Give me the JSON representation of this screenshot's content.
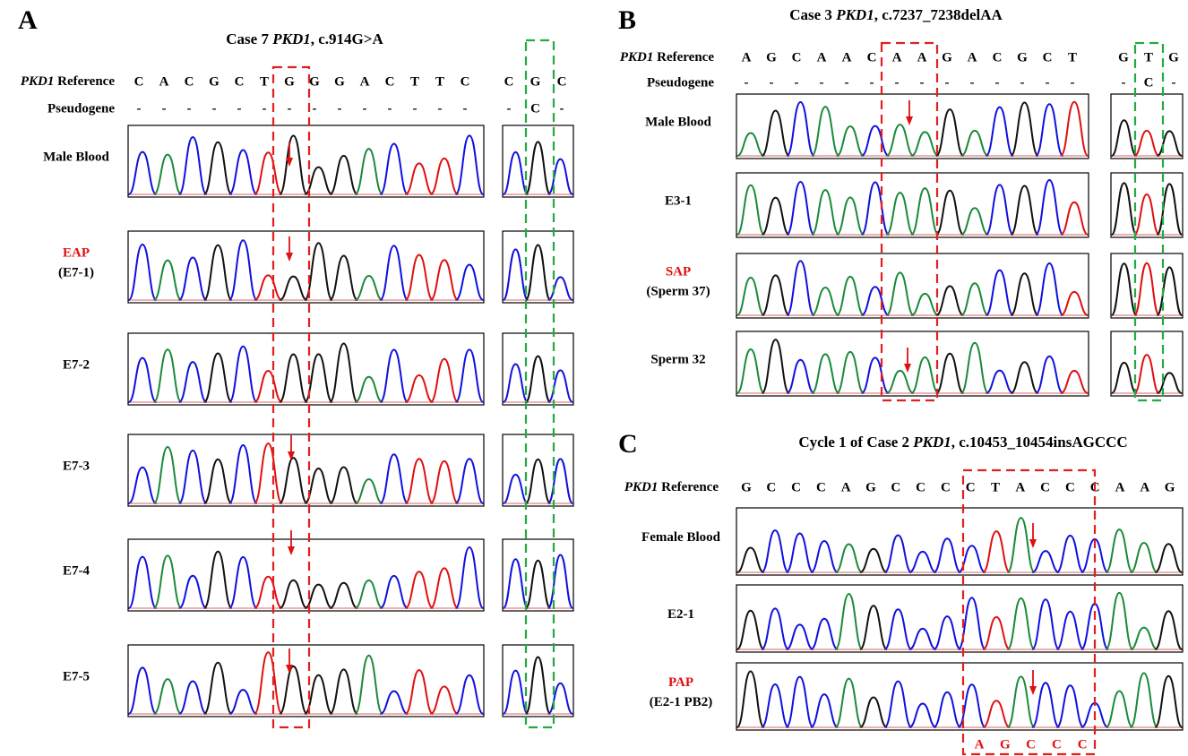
{
  "panels": [
    {
      "label": "A",
      "title": {
        "prefix": "Case 7 ",
        "gene": "PKD1",
        "suffix": ", c.914G>A"
      },
      "reference_label": {
        "gene": "PKD1",
        "text": " Reference"
      },
      "reference": [
        "C",
        "A",
        "C",
        "G",
        "C",
        "T",
        "G",
        "G",
        "G",
        "A",
        "C",
        "T",
        "T",
        "C"
      ],
      "reference_right": [
        "C",
        "G",
        "C"
      ],
      "pseudogene_label": "Pseudogene",
      "pseudogene": [
        "-",
        "-",
        "-",
        "-",
        "-",
        "-",
        "-",
        "-",
        "-",
        "-",
        "-",
        "-",
        "-",
        "-"
      ],
      "pseudogene_right": [
        "-",
        "C",
        "-"
      ],
      "samples": [
        {
          "name": "Male Blood"
        },
        {
          "name": "EAP",
          "sub": "(E7-1)"
        },
        {
          "name": "E7-2"
        },
        {
          "name": "E7-3"
        },
        {
          "name": "E7-4"
        },
        {
          "name": "E7-5"
        }
      ]
    },
    {
      "label": "B",
      "title": {
        "prefix": "Case 3 ",
        "gene": "PKD1",
        "suffix": ", c.7237_7238delAA"
      },
      "reference_label": {
        "gene": "PKD1",
        "text": " Reference"
      },
      "reference": [
        "A",
        "G",
        "C",
        "A",
        "A",
        "C",
        "A",
        "A",
        "G",
        "A",
        "C",
        "G",
        "C",
        "T"
      ],
      "reference_right": [
        "G",
        "T",
        "G"
      ],
      "pseudogene_label": "Pseudogene",
      "pseudogene": [
        "-",
        "-",
        "-",
        "-",
        "-",
        "-",
        "-",
        "-",
        "-",
        "-",
        "-",
        "-",
        "-",
        "-"
      ],
      "pseudogene_right": [
        "-",
        "C",
        "-"
      ],
      "samples": [
        {
          "name": "Male Blood"
        },
        {
          "name": "E3-1"
        },
        {
          "name": "SAP",
          "sub": "(Sperm 37)"
        },
        {
          "name": "Sperm 32"
        }
      ]
    },
    {
      "label": "C",
      "title": {
        "prefix": "Cycle 1 of Case 2 ",
        "gene": "PKD1",
        "suffix": ", c.10453_10454insAGCCC"
      },
      "reference_label": {
        "gene": "PKD1",
        "text": " Reference"
      },
      "reference": [
        "G",
        "C",
        "C",
        "C",
        "A",
        "G",
        "C",
        "C",
        "C",
        "C",
        "T",
        "A",
        "C",
        "C",
        "C",
        "A",
        "A",
        "G"
      ],
      "samples": [
        {
          "name": "Female Blood"
        },
        {
          "name": "E2-1"
        },
        {
          "name": "PAP",
          "sub": "(E2-1 PB2)"
        }
      ],
      "insertion": [
        "A",
        "G",
        "C",
        "C",
        "C"
      ]
    }
  ]
}
